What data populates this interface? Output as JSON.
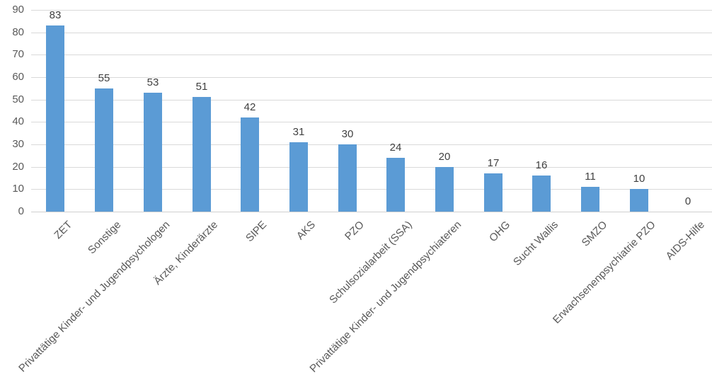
{
  "chart_data": {
    "type": "bar",
    "title": "",
    "xlabel": "",
    "ylabel": "",
    "categories": [
      "ZET",
      "Sonstige",
      "Privattätige Kinder- und Jugendpsychologen",
      "Ärzte, Kinderärzte",
      "SIPE",
      "AKS",
      "PZO",
      "Schulsozialarbeit (SSA)",
      "Privattätige Kinder- und Jugendpsychiateren",
      "OHG",
      "Sucht Wallis",
      "SMZO",
      "Erwachsenenpsychiatrie PZO",
      "AIDS-Hilfe"
    ],
    "values": [
      83,
      55,
      53,
      51,
      42,
      31,
      30,
      24,
      20,
      17,
      16,
      11,
      10,
      0
    ],
    "value_labels": [
      "83",
      "55",
      "53",
      "51",
      "42",
      "31",
      "30",
      "24",
      "20",
      "17",
      "16",
      "11",
      "10",
      "0"
    ],
    "ylim": [
      0,
      90
    ],
    "ytick_step": 10,
    "grid": true,
    "legend": "none",
    "label_rotation_deg": -45,
    "colors": {
      "bar": "#5B9BD5",
      "gridline": "#D9D9D9",
      "axis_line": "#D0D0D0",
      "tick_label": "#595959",
      "value_label": "#404040",
      "background": "#FFFFFF"
    }
  }
}
